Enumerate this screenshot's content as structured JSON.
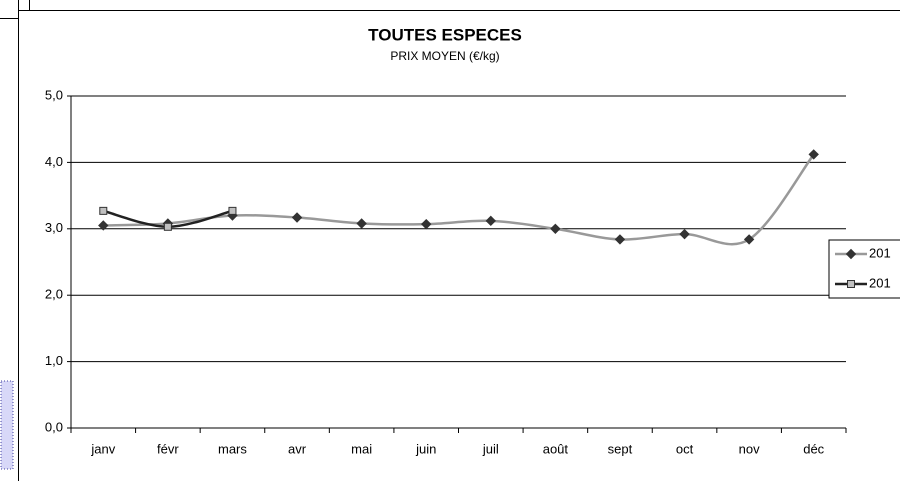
{
  "chart_data": {
    "type": "line",
    "title": "TOUTES ESPECES",
    "subtitle": "PRIX MOYEN (€/kg)",
    "categories": [
      "janv",
      "févr",
      "mars",
      "avr",
      "mai",
      "juin",
      "juil",
      "août",
      "sept",
      "oct",
      "nov",
      "déc"
    ],
    "series": [
      {
        "name": "201",
        "color": "#999999",
        "marker": "diamond",
        "marker_color": "#333333",
        "values": [
          3.05,
          3.08,
          3.2,
          3.17,
          3.08,
          3.07,
          3.12,
          3.0,
          2.84,
          2.92,
          2.84,
          4.12
        ]
      },
      {
        "name": "201",
        "color": "#222222",
        "marker": "square",
        "marker_color": "#c0c0c0",
        "values": [
          3.27,
          3.03,
          3.27,
          null,
          null,
          null,
          null,
          null,
          null,
          null,
          null,
          null
        ]
      }
    ],
    "ylim": [
      0,
      5
    ],
    "yticks": [
      {
        "value": 0,
        "label": "0,0"
      },
      {
        "value": 1,
        "label": "1,0"
      },
      {
        "value": 2,
        "label": "2,0"
      },
      {
        "value": 3,
        "label": "3,0"
      },
      {
        "value": 4,
        "label": "4,0"
      },
      {
        "value": 5,
        "label": "5,0"
      }
    ],
    "grid": true,
    "smooth": true,
    "legend": "right"
  }
}
